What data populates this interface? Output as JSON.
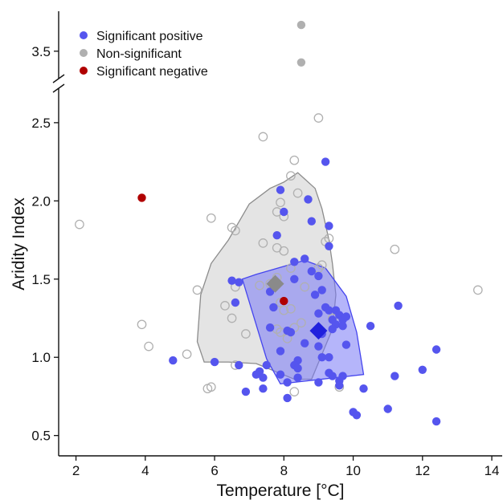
{
  "chart_data": {
    "type": "scatter",
    "title": "",
    "xlabel": "Temperature  [°C]",
    "ylabel": "Aridity Index",
    "xlim": [
      1.5,
      14.3
    ],
    "ylim_lower": [
      0.37,
      2.72
    ],
    "ylim_upper": [
      3.28,
      3.82
    ],
    "axis_break": "y between 2.7 and 3.3",
    "xticks": [
      "2",
      "4",
      "6",
      "8",
      "10",
      "12",
      "14"
    ],
    "yticks_lower": [
      "0.5",
      "1.0",
      "1.5",
      "2.0",
      "2.5"
    ],
    "yticks_upper": [
      "3.5"
    ],
    "grid": false,
    "legend_position": "top-left",
    "legend": [
      {
        "label": "Significant positive",
        "color": "#5555ee",
        "marker": "filled-circle"
      },
      {
        "label": "Non-significant",
        "color": "#b0b0b0",
        "marker": "filled-circle"
      },
      {
        "label": "Significant negative",
        "color": "#b00000",
        "marker": "filled-circle"
      }
    ],
    "series": [
      {
        "name": "Significant positive",
        "color": "#5555ee",
        "marker": "filled-circle",
        "points": [
          [
            9.2,
            2.25
          ],
          [
            7.9,
            2.07
          ],
          [
            8.7,
            2.01
          ],
          [
            8.0,
            1.93
          ],
          [
            8.8,
            1.87
          ],
          [
            9.3,
            1.84
          ],
          [
            7.8,
            1.78
          ],
          [
            9.3,
            1.71
          ],
          [
            8.6,
            1.63
          ],
          [
            8.3,
            1.61
          ],
          [
            8.8,
            1.55
          ],
          [
            9.0,
            1.52
          ],
          [
            8.3,
            1.5
          ],
          [
            6.5,
            1.49
          ],
          [
            6.7,
            1.48
          ],
          [
            9.1,
            1.43
          ],
          [
            7.6,
            1.42
          ],
          [
            8.9,
            1.4
          ],
          [
            6.6,
            1.35
          ],
          [
            9.2,
            1.32
          ],
          [
            11.3,
            1.33
          ],
          [
            7.7,
            1.32
          ],
          [
            9.3,
            1.3
          ],
          [
            9.5,
            1.3
          ],
          [
            9.0,
            1.28
          ],
          [
            9.6,
            1.27
          ],
          [
            9.7,
            1.24
          ],
          [
            9.8,
            1.26
          ],
          [
            9.4,
            1.24
          ],
          [
            9.5,
            1.21
          ],
          [
            9.7,
            1.2
          ],
          [
            9.4,
            1.18
          ],
          [
            10.5,
            1.2
          ],
          [
            8.1,
            1.17
          ],
          [
            8.2,
            1.16
          ],
          [
            7.6,
            1.19
          ],
          [
            9.1,
            1.15
          ],
          [
            8.6,
            1.09
          ],
          [
            9.0,
            1.07
          ],
          [
            9.8,
            1.08
          ],
          [
            7.9,
            1.04
          ],
          [
            9.1,
            1.0
          ],
          [
            9.3,
            1.0
          ],
          [
            8.4,
            0.98
          ],
          [
            8.3,
            0.95
          ],
          [
            6.0,
            0.97
          ],
          [
            4.8,
            0.98
          ],
          [
            6.7,
            0.95
          ],
          [
            12.4,
            1.05
          ],
          [
            7.5,
            0.95
          ],
          [
            8.4,
            0.93
          ],
          [
            7.3,
            0.91
          ],
          [
            7.4,
            0.87
          ],
          [
            7.9,
            0.89
          ],
          [
            7.2,
            0.89
          ],
          [
            9.3,
            0.9
          ],
          [
            9.4,
            0.88
          ],
          [
            9.7,
            0.88
          ],
          [
            9.6,
            0.85
          ],
          [
            8.1,
            0.84
          ],
          [
            9.6,
            0.82
          ],
          [
            8.4,
            0.87
          ],
          [
            12.0,
            0.92
          ],
          [
            11.2,
            0.88
          ],
          [
            9.0,
            0.84
          ],
          [
            10.3,
            0.8
          ],
          [
            7.4,
            0.8
          ],
          [
            6.9,
            0.78
          ],
          [
            8.1,
            0.74
          ],
          [
            11.0,
            0.67
          ],
          [
            10.0,
            0.65
          ],
          [
            10.1,
            0.63
          ],
          [
            12.4,
            0.59
          ]
        ]
      },
      {
        "name": "Non-significant",
        "color": "#b0b0b0",
        "marker": "open-circle",
        "points": [
          [
            9.0,
            2.53
          ],
          [
            7.4,
            2.41
          ],
          [
            8.3,
            2.26
          ],
          [
            8.2,
            2.16
          ],
          [
            8.4,
            2.05
          ],
          [
            7.9,
            1.99
          ],
          [
            7.8,
            1.93
          ],
          [
            8.0,
            1.9
          ],
          [
            5.9,
            1.89
          ],
          [
            2.1,
            1.85
          ],
          [
            6.5,
            1.83
          ],
          [
            6.6,
            1.81
          ],
          [
            9.3,
            1.76
          ],
          [
            9.2,
            1.74
          ],
          [
            7.4,
            1.73
          ],
          [
            11.2,
            1.69
          ],
          [
            7.8,
            1.7
          ],
          [
            8.0,
            1.68
          ],
          [
            9.1,
            1.59
          ],
          [
            9.0,
            1.57
          ],
          [
            8.2,
            1.57
          ],
          [
            7.8,
            1.51
          ],
          [
            7.6,
            1.47
          ],
          [
            7.3,
            1.46
          ],
          [
            8.6,
            1.45
          ],
          [
            6.6,
            1.45
          ],
          [
            5.5,
            1.43
          ],
          [
            13.6,
            1.43
          ],
          [
            7.9,
            1.35
          ],
          [
            6.3,
            1.33
          ],
          [
            8.2,
            1.31
          ],
          [
            8.0,
            1.3
          ],
          [
            9.4,
            1.25
          ],
          [
            6.5,
            1.25
          ],
          [
            8.5,
            1.22
          ],
          [
            3.9,
            1.21
          ],
          [
            8.3,
            1.19
          ],
          [
            7.8,
            1.18
          ],
          [
            7.9,
            1.16
          ],
          [
            6.9,
            1.15
          ],
          [
            8.1,
            1.12
          ],
          [
            4.1,
            1.07
          ],
          [
            5.2,
            1.02
          ],
          [
            6.6,
            0.95
          ],
          [
            9.6,
            0.81
          ],
          [
            5.8,
            0.8
          ],
          [
            5.9,
            0.81
          ],
          [
            8.3,
            0.78
          ]
        ]
      },
      {
        "name": "Non-significant (upper panel)",
        "color": "#b0b0b0",
        "marker": "filled-circle",
        "points": [
          [
            8.5,
            3.71
          ],
          [
            8.5,
            3.41
          ]
        ]
      },
      {
        "name": "Significant negative",
        "color": "#b00000",
        "marker": "filled-circle",
        "points": [
          [
            3.9,
            2.02
          ],
          [
            8.0,
            1.36
          ]
        ]
      }
    ],
    "hulls": [
      {
        "group": "Non-significant",
        "fill": "#d9d9d9",
        "stroke": "#8c8c8c",
        "fill_opacity": 0.7,
        "points": [
          [
            8.4,
            2.18
          ],
          [
            8.0,
            2.12
          ],
          [
            7.6,
            2.08
          ],
          [
            7.0,
            1.98
          ],
          [
            6.4,
            1.75
          ],
          [
            5.9,
            1.6
          ],
          [
            5.6,
            1.4
          ],
          [
            5.5,
            1.1
          ],
          [
            5.7,
            0.97
          ],
          [
            6.4,
            0.97
          ],
          [
            7.2,
            0.96
          ],
          [
            8.3,
            0.86
          ],
          [
            8.8,
            0.86
          ],
          [
            9.4,
            1.18
          ],
          [
            9.5,
            1.4
          ],
          [
            9.4,
            1.6
          ],
          [
            9.3,
            1.75
          ],
          [
            9.1,
            1.95
          ],
          [
            8.9,
            2.08
          ],
          [
            8.6,
            2.14
          ]
        ]
      },
      {
        "group": "Significant positive",
        "fill": "#7878f5",
        "stroke": "#4545ee",
        "fill_opacity": 0.55,
        "points": [
          [
            8.6,
            1.62
          ],
          [
            7.2,
            1.53
          ],
          [
            6.8,
            1.5
          ],
          [
            7.5,
            0.99
          ],
          [
            7.9,
            0.83
          ],
          [
            10.3,
            0.89
          ],
          [
            10.1,
            1.16
          ],
          [
            9.8,
            1.39
          ],
          [
            9.2,
            1.57
          ]
        ]
      }
    ],
    "centroids": [
      {
        "group": "Non-significant",
        "x": 7.75,
        "y": 1.47,
        "color": "#8a8a8a",
        "marker": "diamond"
      },
      {
        "group": "Significant positive",
        "x": 9.0,
        "y": 1.17,
        "color": "#2020dd",
        "marker": "diamond"
      }
    ]
  }
}
